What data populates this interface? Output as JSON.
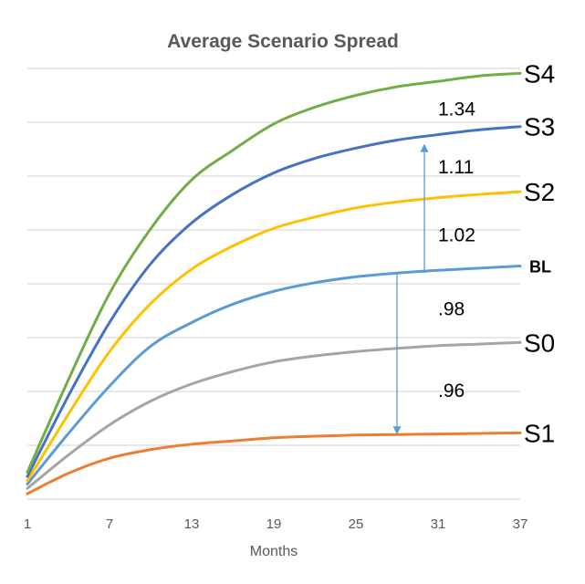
{
  "chart_data": {
    "type": "line",
    "title": "Average Scenario Spread",
    "xlabel": "Months",
    "ylabel": "",
    "x_ticks": [
      1,
      7,
      13,
      19,
      25,
      31,
      37
    ],
    "xlim": [
      1,
      37
    ],
    "ylim": [
      0,
      8
    ],
    "gridlines": true,
    "legend": "none",
    "x": [
      1,
      4,
      7,
      10,
      13,
      16,
      19,
      22,
      25,
      28,
      31,
      34,
      37
    ],
    "series": [
      {
        "name": "S4",
        "color": "#70AD47",
        "values": [
          0.5,
          2.22,
          3.82,
          5.02,
          5.93,
          6.48,
          6.97,
          7.28,
          7.5,
          7.66,
          7.76,
          7.86,
          7.91
        ]
      },
      {
        "name": "S3",
        "color": "#4472C4",
        "values": [
          0.42,
          1.92,
          3.28,
          4.37,
          5.13,
          5.66,
          6.06,
          6.33,
          6.52,
          6.67,
          6.77,
          6.86,
          6.92
        ]
      },
      {
        "name": "S2",
        "color": "#FFC000",
        "values": [
          0.34,
          1.58,
          2.74,
          3.63,
          4.27,
          4.7,
          5.03,
          5.24,
          5.41,
          5.52,
          5.6,
          5.66,
          5.71
        ]
      },
      {
        "name": "BL",
        "color": "#5B9BD5",
        "values": [
          0.28,
          1.22,
          2.1,
          2.84,
          3.28,
          3.62,
          3.86,
          4.02,
          4.13,
          4.2,
          4.25,
          4.29,
          4.33
        ]
      },
      {
        "name": "S0",
        "color": "#A5A5A5",
        "values": [
          0.2,
          0.82,
          1.38,
          1.82,
          2.14,
          2.37,
          2.55,
          2.66,
          2.74,
          2.8,
          2.85,
          2.88,
          2.91
        ]
      },
      {
        "name": "S1",
        "color": "#ED7D31",
        "values": [
          0.1,
          0.48,
          0.76,
          0.92,
          1.02,
          1.08,
          1.14,
          1.17,
          1.19,
          1.2,
          1.21,
          1.22,
          1.23
        ]
      }
    ],
    "series_labels": [
      "S4",
      "S3",
      "S2",
      "BL",
      "S0",
      "S1"
    ],
    "annotations": [
      {
        "text": "1.34"
      },
      {
        "text": "1.11"
      },
      {
        "text": "1.02"
      },
      {
        "text": ".98"
      },
      {
        "text": ".96"
      }
    ],
    "arrows": [
      {
        "x": 30,
        "from": 4.2,
        "to": 6.6,
        "color": "#5B9BD5"
      },
      {
        "x": 28,
        "from": 4.2,
        "to": 1.2,
        "color": "#5B9BD5"
      }
    ]
  }
}
